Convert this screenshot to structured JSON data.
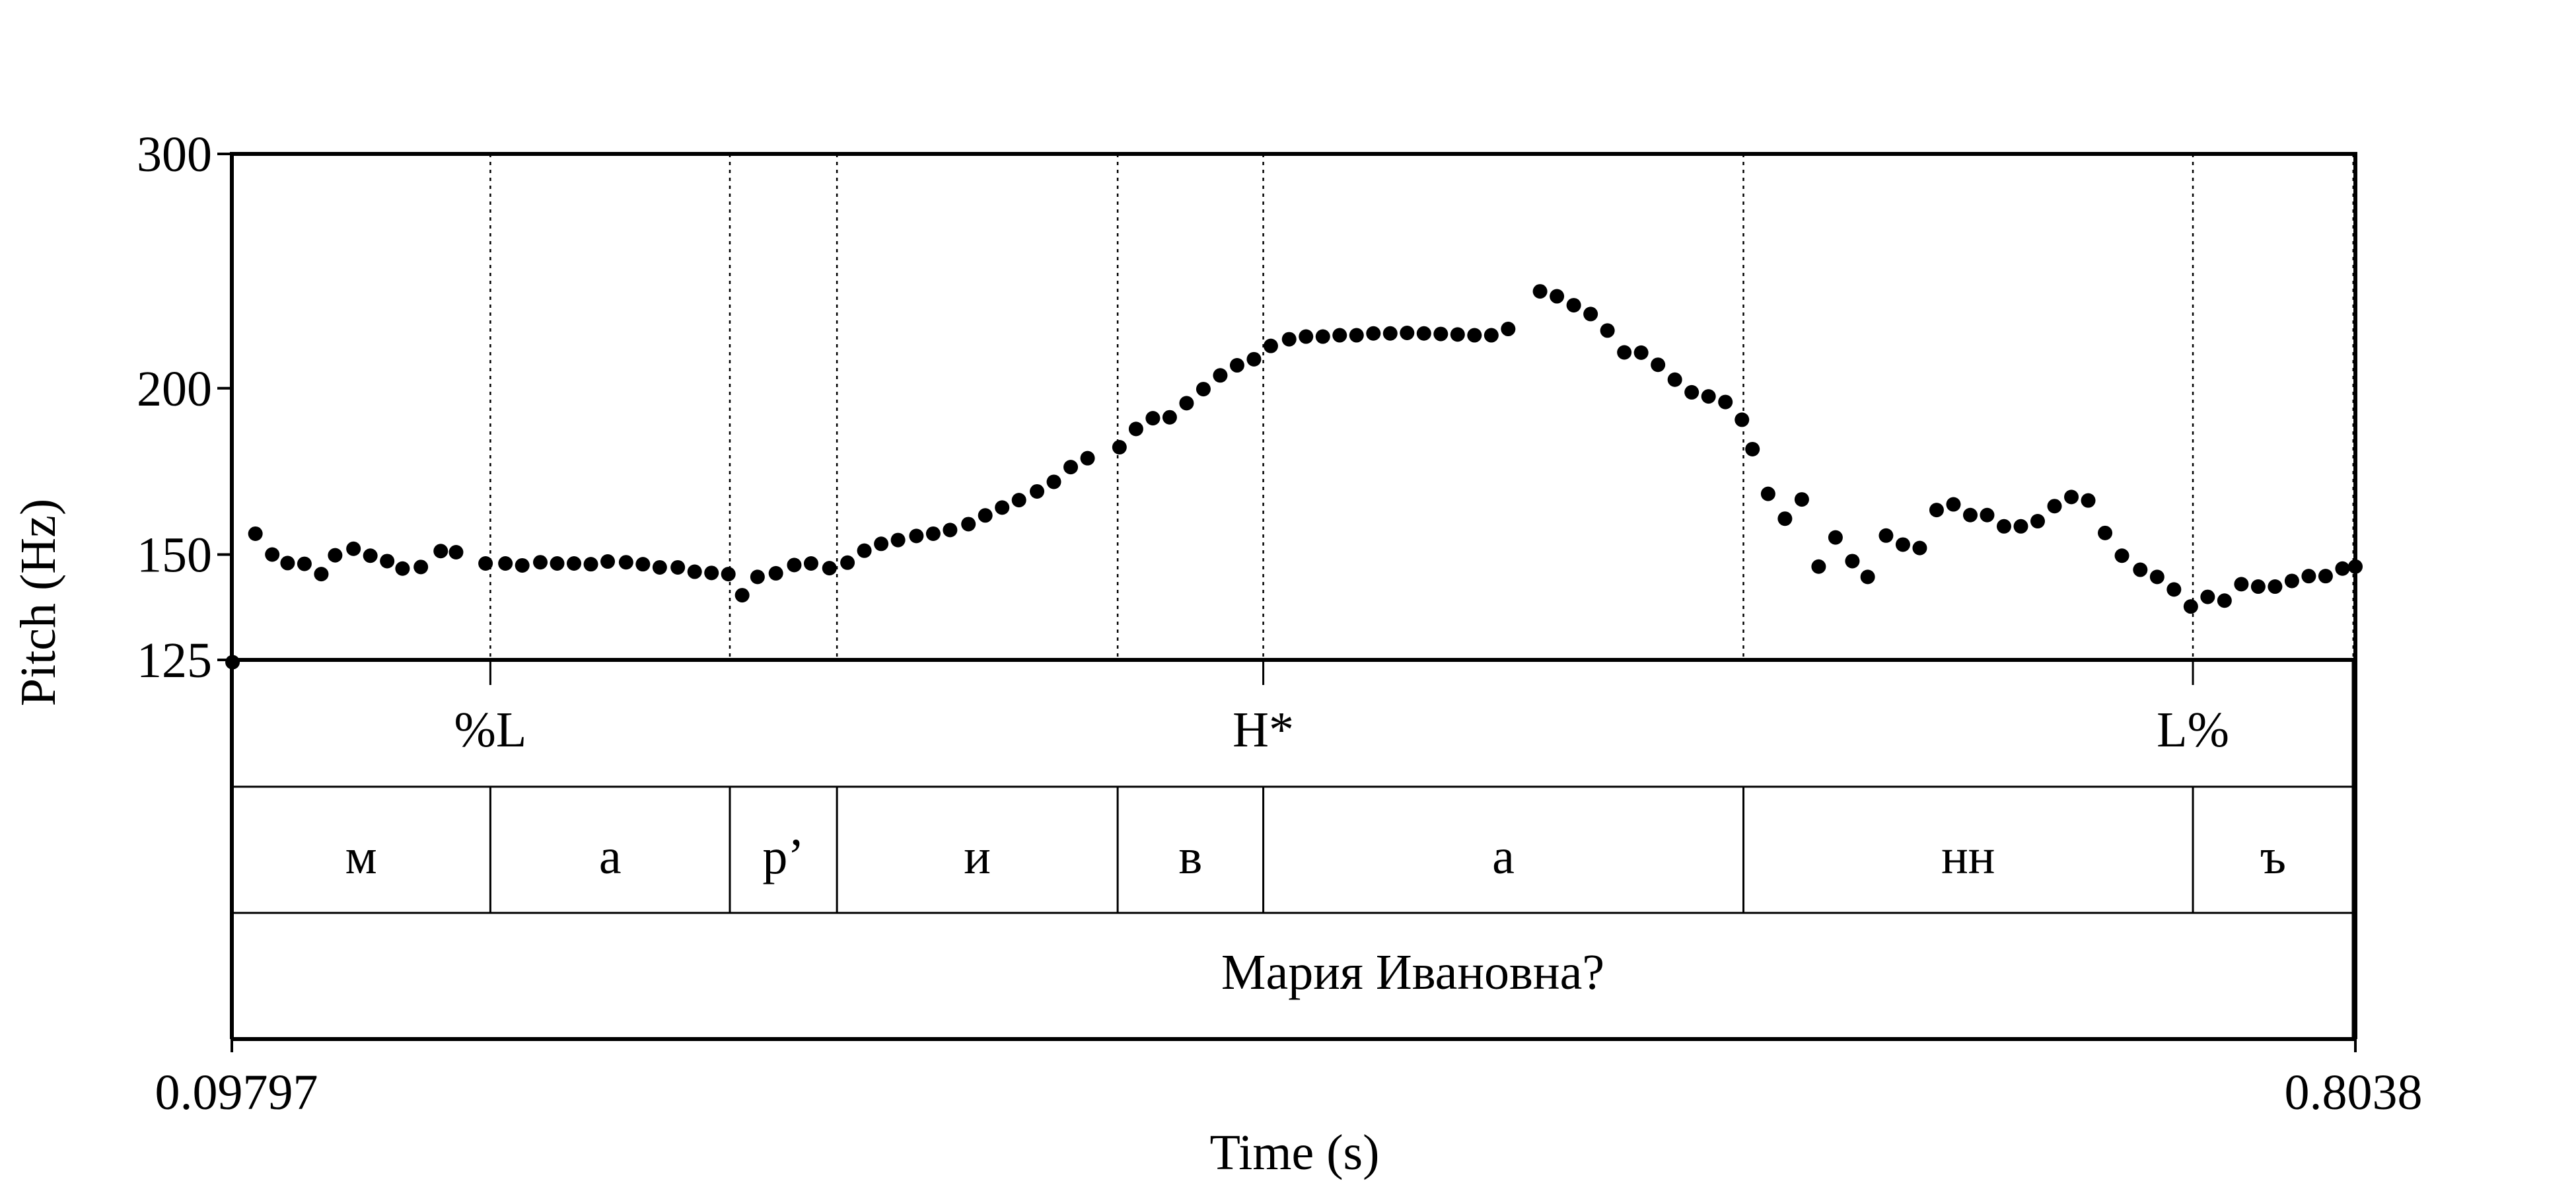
{
  "chart_data": {
    "type": "scatter",
    "ylabel": "Pitch (Hz)",
    "xlabel": "Time (s)",
    "x_start_label": "0.09797",
    "x_end_label": "0.8038",
    "xlim": [
      0.09797,
      0.8038
    ],
    "ylim": [
      125,
      300
    ],
    "y_scale": "log",
    "y_ticks": [
      {
        "value": 300,
        "label": "300"
      },
      {
        "value": 200,
        "label": "200"
      },
      {
        "value": 150,
        "label": "150"
      },
      {
        "value": 125,
        "label": "125"
      }
    ],
    "boundaries": [
      0.1839,
      0.2635,
      0.2991,
      0.3924,
      0.4408,
      0.6004,
      0.7498,
      0.8031
    ],
    "tones": [
      {
        "time": 0.1839,
        "label": "%L"
      },
      {
        "time": 0.4408,
        "label": "H*"
      },
      {
        "time": 0.7498,
        "label": "L%"
      }
    ],
    "segments": [
      {
        "start": 0.09797,
        "end": 0.1839,
        "label": "м"
      },
      {
        "start": 0.1839,
        "end": 0.2635,
        "label": "а"
      },
      {
        "start": 0.2635,
        "end": 0.2991,
        "label": "р’"
      },
      {
        "start": 0.2991,
        "end": 0.3924,
        "label": "и"
      },
      {
        "start": 0.3924,
        "end": 0.4408,
        "label": "в"
      },
      {
        "start": 0.4408,
        "end": 0.6004,
        "label": "а"
      },
      {
        "start": 0.6004,
        "end": 0.7498,
        "label": "нн"
      },
      {
        "start": 0.7498,
        "end": 0.8031,
        "label": "ъ"
      }
    ],
    "phrase": "Мария Ивановна?",
    "points": [
      [
        0.0982,
        124.5
      ],
      [
        0.1058,
        155.5
      ],
      [
        0.1114,
        150.0
      ],
      [
        0.1165,
        147.8
      ],
      [
        0.1221,
        147.6
      ],
      [
        0.1277,
        145.0
      ],
      [
        0.1323,
        149.8
      ],
      [
        0.1384,
        151.5
      ],
      [
        0.144,
        149.7
      ],
      [
        0.1496,
        148.3
      ],
      [
        0.1547,
        146.4
      ],
      [
        0.1608,
        146.8
      ],
      [
        0.1674,
        150.9
      ],
      [
        0.1725,
        150.6
      ],
      [
        0.1823,
        147.7
      ],
      [
        0.1889,
        147.7
      ],
      [
        0.1945,
        147.2
      ],
      [
        0.2005,
        148.0
      ],
      [
        0.2061,
        147.7
      ],
      [
        0.2117,
        147.7
      ],
      [
        0.2173,
        147.5
      ],
      [
        0.2229,
        148.2
      ],
      [
        0.229,
        148.0
      ],
      [
        0.2346,
        147.5
      ],
      [
        0.2402,
        146.7
      ],
      [
        0.2462,
        146.7
      ],
      [
        0.2518,
        145.6
      ],
      [
        0.2574,
        145.3
      ],
      [
        0.263,
        145.0
      ],
      [
        0.2676,
        139.8
      ],
      [
        0.2727,
        144.3
      ],
      [
        0.2788,
        145.2
      ],
      [
        0.2849,
        147.3
      ],
      [
        0.2905,
        147.7
      ],
      [
        0.2966,
        146.5
      ],
      [
        0.3026,
        147.9
      ],
      [
        0.3082,
        151.0
      ],
      [
        0.3138,
        152.8
      ],
      [
        0.3194,
        153.8
      ],
      [
        0.3255,
        154.9
      ],
      [
        0.3311,
        155.5
      ],
      [
        0.3367,
        156.5
      ],
      [
        0.3428,
        158.1
      ],
      [
        0.3484,
        160.5
      ],
      [
        0.354,
        162.7
      ],
      [
        0.3596,
        164.8
      ],
      [
        0.3656,
        167.3
      ],
      [
        0.3712,
        170.1
      ],
      [
        0.3768,
        174.5
      ],
      [
        0.3824,
        177.2
      ],
      [
        0.393,
        180.6
      ],
      [
        0.3985,
        186.4
      ],
      [
        0.4041,
        189.9
      ],
      [
        0.4097,
        190.2
      ],
      [
        0.4153,
        194.9
      ],
      [
        0.4209,
        199.7
      ],
      [
        0.4265,
        204.5
      ],
      [
        0.4321,
        208.1
      ],
      [
        0.4377,
        210.3
      ],
      [
        0.4433,
        215.2
      ],
      [
        0.4494,
        217.7
      ],
      [
        0.455,
        218.7
      ],
      [
        0.4606,
        218.7
      ],
      [
        0.4662,
        219.2
      ],
      [
        0.4718,
        219.2
      ],
      [
        0.4774,
        219.9
      ],
      [
        0.483,
        219.9
      ],
      [
        0.4886,
        220.1
      ],
      [
        0.4942,
        219.9
      ],
      [
        0.4998,
        219.7
      ],
      [
        0.5054,
        219.5
      ],
      [
        0.511,
        219.2
      ],
      [
        0.5166,
        219.2
      ],
      [
        0.5222,
        221.6
      ],
      [
        0.5328,
        236.5
      ],
      [
        0.5384,
        234.5
      ],
      [
        0.544,
        230.9
      ],
      [
        0.5496,
        227.4
      ],
      [
        0.5552,
        221.0
      ],
      [
        0.5608,
        212.8
      ],
      [
        0.5664,
        212.7
      ],
      [
        0.572,
        208.3
      ],
      [
        0.5776,
        203.0
      ],
      [
        0.5832,
        198.6
      ],
      [
        0.5888,
        197.2
      ],
      [
        0.5944,
        195.3
      ],
      [
        0.5999,
        189.4
      ],
      [
        0.6034,
        180.0
      ],
      [
        0.6086,
        166.6
      ],
      [
        0.6142,
        159.6
      ],
      [
        0.6198,
        165.0
      ],
      [
        0.6254,
        146.9
      ],
      [
        0.631,
        154.5
      ],
      [
        0.6366,
        148.3
      ],
      [
        0.6417,
        144.3
      ],
      [
        0.6478,
        155.0
      ],
      [
        0.6534,
        152.6
      ],
      [
        0.659,
        151.7
      ],
      [
        0.6646,
        162.0
      ],
      [
        0.6702,
        163.6
      ],
      [
        0.6758,
        160.6
      ],
      [
        0.6814,
        160.6
      ],
      [
        0.687,
        157.5
      ],
      [
        0.6926,
        157.5
      ],
      [
        0.6982,
        158.9
      ],
      [
        0.7038,
        163.1
      ],
      [
        0.7094,
        165.7
      ],
      [
        0.715,
        164.7
      ],
      [
        0.7206,
        155.7
      ],
      [
        0.7262,
        149.7
      ],
      [
        0.7323,
        146.1
      ],
      [
        0.7379,
        144.3
      ],
      [
        0.7435,
        141.2
      ],
      [
        0.7491,
        137.1
      ],
      [
        0.7547,
        139.4
      ],
      [
        0.7603,
        138.5
      ],
      [
        0.7659,
        142.5
      ],
      [
        0.7715,
        141.9
      ],
      [
        0.7771,
        141.9
      ],
      [
        0.7827,
        143.3
      ],
      [
        0.7883,
        144.5
      ],
      [
        0.7939,
        144.5
      ],
      [
        0.7995,
        146.4
      ],
      [
        0.8038,
        146.9
      ]
    ]
  }
}
